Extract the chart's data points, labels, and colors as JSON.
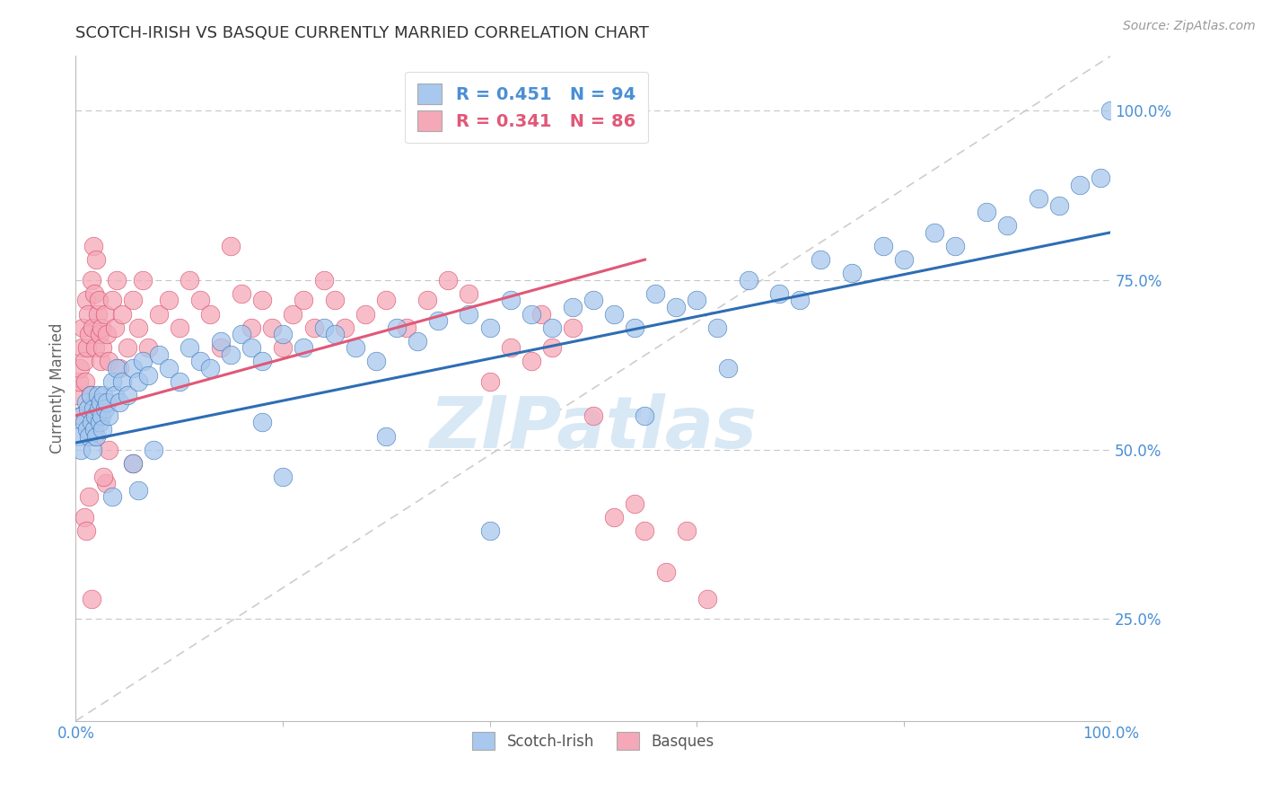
{
  "title": "SCOTCH-IRISH VS BASQUE CURRENTLY MARRIED CORRELATION CHART",
  "source": "Source: ZipAtlas.com",
  "ylabel": "Currently Married",
  "blue_label": "Scotch-Irish",
  "pink_label": "Basques",
  "blue_R": 0.451,
  "blue_N": 94,
  "pink_R": 0.341,
  "pink_N": 86,
  "blue_color": "#A8C8ED",
  "pink_color": "#F5A8B8",
  "blue_line_color": "#2E6DB4",
  "pink_line_color": "#D44060",
  "pink_trend_color": "#E05878",
  "ref_line_color": "#C8C8C8",
  "grid_color": "#C0C0C0",
  "axis_label_color": "#4A8FD4",
  "title_color": "#333333",
  "watermark_color": "#D8E8F5",
  "blue_scatter_x": [
    0.3,
    0.5,
    0.6,
    0.8,
    1.0,
    1.1,
    1.2,
    1.3,
    1.4,
    1.5,
    1.6,
    1.7,
    1.8,
    1.9,
    2.0,
    2.1,
    2.2,
    2.3,
    2.4,
    2.5,
    2.6,
    2.7,
    2.8,
    3.0,
    3.2,
    3.5,
    3.8,
    4.0,
    4.2,
    4.5,
    5.0,
    5.5,
    6.0,
    6.5,
    7.0,
    8.0,
    9.0,
    10.0,
    11.0,
    12.0,
    13.0,
    14.0,
    15.0,
    16.0,
    17.0,
    18.0,
    20.0,
    22.0,
    24.0,
    25.0,
    27.0,
    29.0,
    31.0,
    33.0,
    35.0,
    38.0,
    40.0,
    42.0,
    44.0,
    46.0,
    48.0,
    50.0,
    52.0,
    54.0,
    56.0,
    58.0,
    60.0,
    62.0,
    65.0,
    68.0,
    70.0,
    72.0,
    75.0,
    78.0,
    80.0,
    83.0,
    85.0,
    88.0,
    90.0,
    93.0,
    95.0,
    97.0,
    99.0,
    100.0,
    55.0,
    63.0,
    20.0,
    30.0,
    40.0,
    18.0,
    6.0,
    7.5,
    3.5,
    5.5
  ],
  "blue_scatter_y": [
    52,
    50,
    55,
    54,
    57,
    53,
    56,
    52,
    58,
    54,
    50,
    56,
    53,
    55,
    52,
    58,
    56,
    54,
    57,
    55,
    53,
    58,
    56,
    57,
    55,
    60,
    58,
    62,
    57,
    60,
    58,
    62,
    60,
    63,
    61,
    64,
    62,
    60,
    65,
    63,
    62,
    66,
    64,
    67,
    65,
    63,
    67,
    65,
    68,
    67,
    65,
    63,
    68,
    66,
    69,
    70,
    68,
    72,
    70,
    68,
    71,
    72,
    70,
    68,
    73,
    71,
    72,
    68,
    75,
    73,
    72,
    78,
    76,
    80,
    78,
    82,
    80,
    85,
    83,
    87,
    86,
    89,
    90,
    100,
    55,
    62,
    46,
    52,
    38,
    54,
    44,
    50,
    43,
    48
  ],
  "pink_scatter_x": [
    0.2,
    0.3,
    0.4,
    0.5,
    0.6,
    0.7,
    0.8,
    0.9,
    1.0,
    1.1,
    1.2,
    1.3,
    1.4,
    1.5,
    1.6,
    1.7,
    1.8,
    1.9,
    2.0,
    2.1,
    2.2,
    2.3,
    2.4,
    2.5,
    2.6,
    2.8,
    3.0,
    3.2,
    3.5,
    3.8,
    4.0,
    4.5,
    5.0,
    5.5,
    6.0,
    6.5,
    7.0,
    8.0,
    9.0,
    10.0,
    11.0,
    12.0,
    13.0,
    14.0,
    15.0,
    16.0,
    17.0,
    18.0,
    19.0,
    20.0,
    21.0,
    22.0,
    23.0,
    24.0,
    25.0,
    26.0,
    28.0,
    30.0,
    32.0,
    34.0,
    36.0,
    38.0,
    40.0,
    42.0,
    44.0,
    45.0,
    46.0,
    48.0,
    50.0,
    52.0,
    54.0,
    55.0,
    57.0,
    59.0,
    61.0,
    2.1,
    3.2,
    1.8,
    4.2,
    2.9,
    5.5,
    1.3,
    2.7,
    0.8,
    1.0,
    1.5
  ],
  "pink_scatter_y": [
    58,
    60,
    62,
    55,
    65,
    68,
    63,
    60,
    72,
    65,
    70,
    67,
    58,
    75,
    68,
    80,
    73,
    65,
    78,
    70,
    72,
    67,
    63,
    68,
    65,
    70,
    67,
    63,
    72,
    68,
    75,
    70,
    65,
    72,
    68,
    75,
    65,
    70,
    72,
    68,
    75,
    72,
    70,
    65,
    80,
    73,
    68,
    72,
    68,
    65,
    70,
    72,
    68,
    75,
    72,
    68,
    70,
    72,
    68,
    72,
    75,
    73,
    60,
    65,
    63,
    70,
    65,
    68,
    55,
    40,
    42,
    38,
    32,
    38,
    28,
    55,
    50,
    52,
    62,
    45,
    48,
    43,
    46,
    40,
    38,
    28
  ],
  "xlim": [
    0,
    100
  ],
  "ylim": [
    10,
    108
  ],
  "yticks": [
    25,
    50,
    75,
    100
  ],
  "ytick_labels": [
    "25.0%",
    "50.0%",
    "75.0%",
    "100.0%"
  ],
  "xtick_labels": [
    "0.0%",
    "100.0%"
  ],
  "blue_trend_x0": 0,
  "blue_trend_y0": 51,
  "blue_trend_x1": 100,
  "blue_trend_y1": 82,
  "pink_trend_x0": 0,
  "pink_trend_y0": 55,
  "pink_trend_x1": 55,
  "pink_trend_y1": 78
}
